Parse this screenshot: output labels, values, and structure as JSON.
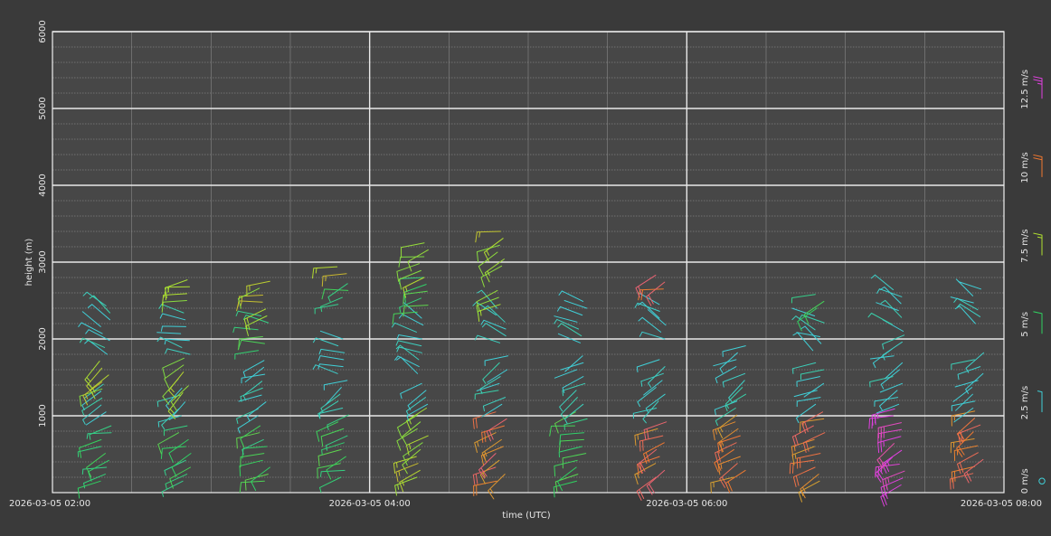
{
  "chart_data": {
    "type": "wind_barb_profile",
    "xlabel": "time (UTC)",
    "ylabel": "height (m)",
    "x_range": [
      "2026-03-05 02:00",
      "2026-03-05 08:00"
    ],
    "x_ticks": [
      "2026-03-05 02:00",
      "2026-03-05 04:00",
      "2026-03-05 06:00",
      "2026-03-05 08:00"
    ],
    "ylim": [
      0,
      6000
    ],
    "y_ticks": [
      1000,
      2000,
      3000,
      4000,
      5000,
      6000
    ],
    "y_tick_labels": [
      "1000",
      "2000",
      "3000",
      "4000",
      "5000",
      "6000"
    ],
    "grid": true,
    "legend": {
      "placement": "right",
      "entries": [
        {
          "label": "0 m/s",
          "speed": 0,
          "color": "#40d0d8",
          "symbol": "calm-circle"
        },
        {
          "label": "2.5 m/s",
          "speed": 2.5,
          "color": "#40d0d8"
        },
        {
          "label": "5 m/s",
          "speed": 5,
          "color": "#30d060"
        },
        {
          "label": "7.5 m/s",
          "speed": 7.5,
          "color": "#b0e030"
        },
        {
          "label": "10 m/s",
          "speed": 10,
          "color": "#f07830"
        },
        {
          "label": "12.5 m/s",
          "speed": 12.5,
          "color": "#e040e0"
        }
      ]
    },
    "profiles": [
      {
        "time": "02:20",
        "layers": [
          {
            "z0": 150,
            "z1": 900,
            "speed": 5,
            "dir": 250
          },
          {
            "z0": 1050,
            "z1": 1450,
            "speed": 2.5,
            "dir": 240
          },
          {
            "z0": 1350,
            "z1": 1750,
            "speed": 7.5,
            "dir": 235
          },
          {
            "z0": 1800,
            "z1": 2450,
            "speed": 2.5,
            "dir": 300
          }
        ]
      },
      {
        "time": "02:50",
        "layers": [
          {
            "z0": 150,
            "z1": 900,
            "speed": 5,
            "dir": 250
          },
          {
            "z0": 1000,
            "z1": 1400,
            "speed": 2.5,
            "dir": 240
          },
          {
            "z0": 1300,
            "z1": 1750,
            "speed": 7.5,
            "dir": 235
          },
          {
            "z0": 1800,
            "z1": 2350,
            "speed": 2.5,
            "dir": 290
          },
          {
            "z0": 2500,
            "z1": 2850,
            "speed": 7.5,
            "dir": 250
          }
        ]
      },
      {
        "time": "03:20",
        "layers": [
          {
            "z0": 150,
            "z1": 900,
            "speed": 5,
            "dir": 250
          },
          {
            "z0": 1000,
            "z1": 1750,
            "speed": 2.5,
            "dir": 245
          },
          {
            "z0": 1850,
            "z1": 2300,
            "speed": 5,
            "dir": 280
          },
          {
            "z0": 2300,
            "z1": 2750,
            "speed": 7.5,
            "dir": 255
          }
        ]
      },
      {
        "time": "03:50",
        "layers": [
          {
            "z0": 200,
            "z1": 1050,
            "speed": 5,
            "dir": 250
          },
          {
            "z0": 1100,
            "z1": 1500,
            "speed": 2.5,
            "dir": 240
          },
          {
            "z0": 1550,
            "z1": 2000,
            "speed": 2.5,
            "dir": 290
          },
          {
            "z0": 2450,
            "z1": 2750,
            "speed": 5,
            "dir": 255
          },
          {
            "z0": 2850,
            "z1": 2950,
            "speed": 7.5,
            "dir": 250
          }
        ]
      },
      {
        "time": "04:20",
        "layers": [
          {
            "z0": 200,
            "z1": 1100,
            "speed": 7.5,
            "dir": 245
          },
          {
            "z0": 1150,
            "z1": 1500,
            "speed": 2.5,
            "dir": 240
          },
          {
            "z0": 1550,
            "z1": 2300,
            "speed": 2.5,
            "dir": 300
          },
          {
            "z0": 2350,
            "z1": 2800,
            "speed": 5,
            "dir": 255
          },
          {
            "z0": 2800,
            "z1": 3300,
            "speed": 7.5,
            "dir": 250
          }
        ]
      },
      {
        "time": "04:50",
        "layers": [
          {
            "z0": 150,
            "z1": 1100,
            "speed": 10,
            "dir": 245
          },
          {
            "z0": 1150,
            "z1": 1800,
            "speed": 2.5,
            "dir": 245
          },
          {
            "z0": 1950,
            "z1": 2450,
            "speed": 2.5,
            "dir": 300
          },
          {
            "z0": 2450,
            "z1": 2700,
            "speed": 7.5,
            "dir": 255
          },
          {
            "z0": 2950,
            "z1": 3400,
            "speed": 7.5,
            "dir": 250
          }
        ]
      },
      {
        "time": "05:20",
        "layers": [
          {
            "z0": 150,
            "z1": 1050,
            "speed": 5,
            "dir": 250
          },
          {
            "z0": 1150,
            "z1": 1800,
            "speed": 2.5,
            "dir": 240
          },
          {
            "z0": 1950,
            "z1": 2550,
            "speed": 2.5,
            "dir": 300
          }
        ]
      },
      {
        "time": "05:50",
        "layers": [
          {
            "z0": 200,
            "z1": 1000,
            "speed": 10,
            "dir": 245
          },
          {
            "z0": 1100,
            "z1": 1750,
            "speed": 2.5,
            "dir": 240
          },
          {
            "z0": 2000,
            "z1": 2450,
            "speed": 2.5,
            "dir": 300
          },
          {
            "z0": 2650,
            "z1": 2850,
            "speed": 10,
            "dir": 250
          }
        ]
      },
      {
        "time": "06:20",
        "layers": [
          {
            "z0": 200,
            "z1": 1050,
            "speed": 10,
            "dir": 245
          },
          {
            "z0": 1100,
            "z1": 1950,
            "speed": 2.5,
            "dir": 240
          }
        ]
      },
      {
        "time": "06:50",
        "layers": [
          {
            "z0": 150,
            "z1": 1100,
            "speed": 10,
            "dir": 245
          },
          {
            "z0": 1150,
            "z1": 1750,
            "speed": 2.5,
            "dir": 245
          },
          {
            "z0": 1850,
            "z1": 2350,
            "speed": 2.5,
            "dir": 300
          },
          {
            "z0": 2400,
            "z1": 2650,
            "speed": 5,
            "dir": 255
          }
        ]
      },
      {
        "time": "07:20",
        "layers": [
          {
            "z0": 100,
            "z1": 1150,
            "speed": 12.5,
            "dir": 245
          },
          {
            "z0": 1150,
            "z1": 2050,
            "speed": 2.5,
            "dir": 245
          },
          {
            "z0": 2100,
            "z1": 2650,
            "speed": 2.5,
            "dir": 300
          }
        ]
      },
      {
        "time": "07:50",
        "layers": [
          {
            "z0": 250,
            "z1": 1100,
            "speed": 10,
            "dir": 245
          },
          {
            "z0": 1100,
            "z1": 1900,
            "speed": 2.5,
            "dir": 240
          },
          {
            "z0": 2200,
            "z1": 2650,
            "speed": 2.5,
            "dir": 300
          }
        ]
      }
    ]
  }
}
